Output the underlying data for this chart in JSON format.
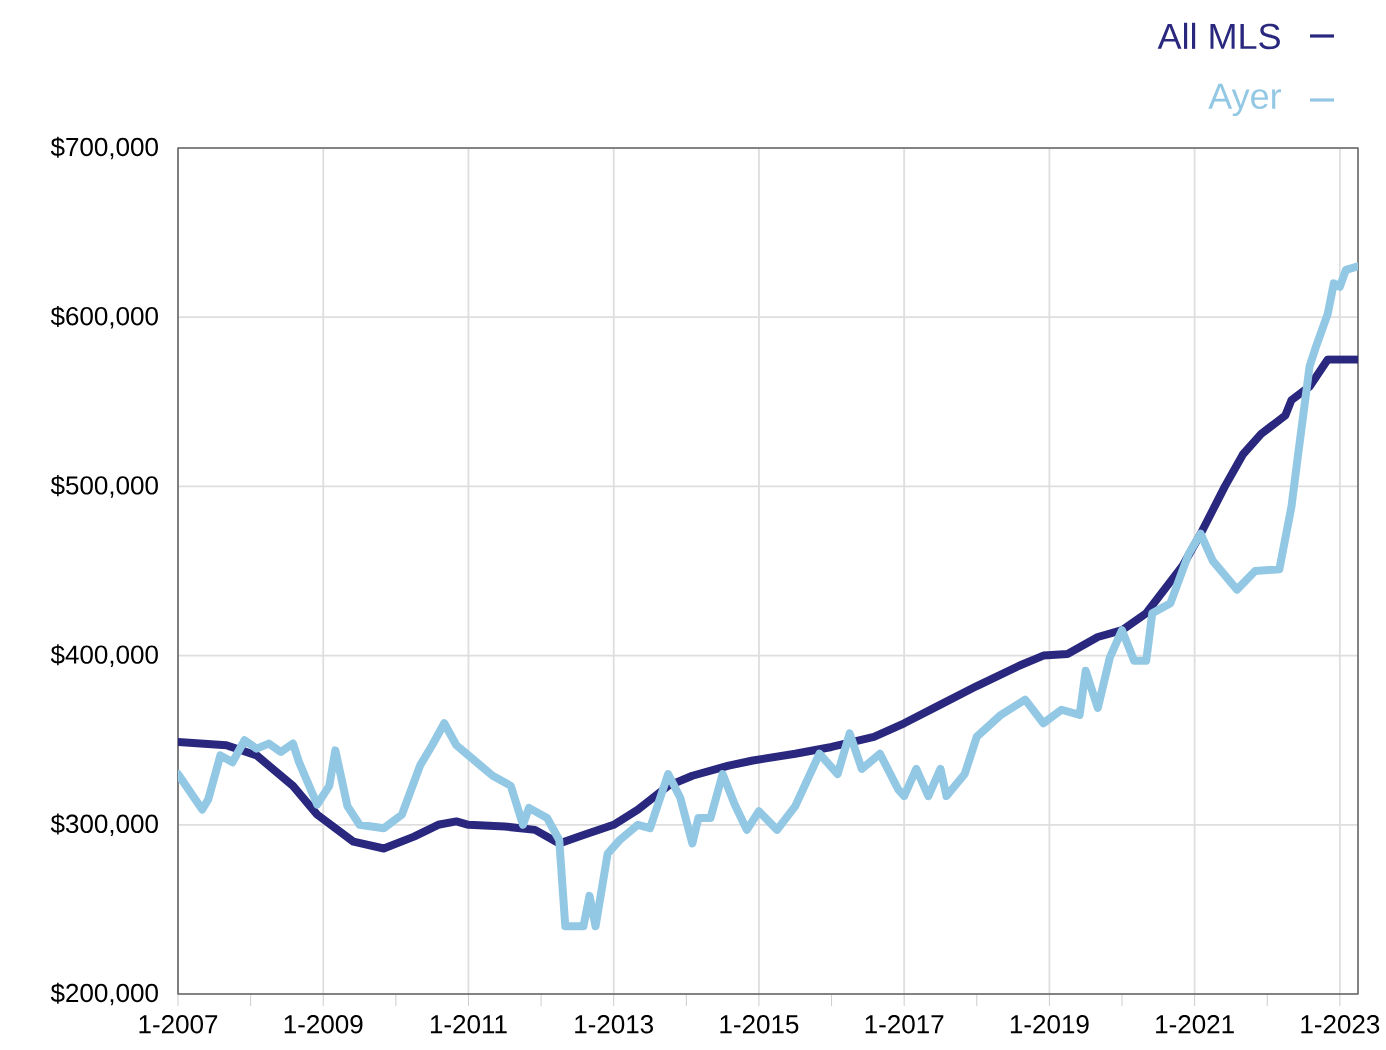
{
  "chart_data": {
    "type": "line",
    "xlim": [
      "2007-01",
      "2023-04"
    ],
    "xticks": [
      {
        "value": "2007-01",
        "label": "1-2007"
      },
      {
        "value": "2008-01",
        "label": null
      },
      {
        "value": "2009-01",
        "label": "1-2009"
      },
      {
        "value": "2010-01",
        "label": null
      },
      {
        "value": "2011-01",
        "label": "1-2011"
      },
      {
        "value": "2012-01",
        "label": null
      },
      {
        "value": "2013-01",
        "label": "1-2013"
      },
      {
        "value": "2014-01",
        "label": null
      },
      {
        "value": "2015-01",
        "label": "1-2015"
      },
      {
        "value": "2016-01",
        "label": null
      },
      {
        "value": "2017-01",
        "label": "1-2017"
      },
      {
        "value": "2018-01",
        "label": null
      },
      {
        "value": "2019-01",
        "label": "1-2019"
      },
      {
        "value": "2020-01",
        "label": null
      },
      {
        "value": "2021-01",
        "label": "1-2021"
      },
      {
        "value": "2022-01",
        "label": null
      },
      {
        "value": "2023-01",
        "label": "1-2023"
      }
    ],
    "ylim": [
      200000,
      700000
    ],
    "yticks": [
      {
        "value": 200000,
        "label": "$200,000"
      },
      {
        "value": 300000,
        "label": "$300,000"
      },
      {
        "value": 400000,
        "label": "$400,000"
      },
      {
        "value": 500000,
        "label": "$500,000"
      },
      {
        "value": 600000,
        "label": "$600,000"
      },
      {
        "value": 700000,
        "label": "$700,000"
      }
    ],
    "grid": true,
    "legend": "top right",
    "marker": "none",
    "line_style": "solid",
    "series": [
      {
        "name": "All MLS",
        "color": "#29287e",
        "x": [
          "2007-01",
          "2007-09",
          "2008-02",
          "2008-08",
          "2008-12",
          "2009-06",
          "2009-11",
          "2010-04",
          "2010-08",
          "2010-11",
          "2011-01",
          "2011-07",
          "2011-12",
          "2012-04",
          "2012-08",
          "2013-01",
          "2013-05",
          "2013-10",
          "2014-02",
          "2014-08",
          "2014-12",
          "2015-07",
          "2016-01",
          "2016-08",
          "2017-01",
          "2017-07",
          "2018-01",
          "2018-08",
          "2018-12",
          "2019-04",
          "2019-09",
          "2020-01",
          "2020-05",
          "2020-11",
          "2021-02",
          "2021-06",
          "2021-09",
          "2021-12",
          "2022-04",
          "2022-05",
          "2022-08",
          "2022-11",
          "2023-04"
        ],
        "values": [
          349000,
          347000,
          341000,
          323000,
          306000,
          290000,
          286000,
          293000,
          300000,
          302000,
          300000,
          299000,
          297000,
          289000,
          294000,
          300000,
          309000,
          323000,
          329000,
          335000,
          338000,
          342000,
          346000,
          352000,
          360000,
          371000,
          382000,
          394000,
          400000,
          401000,
          411000,
          415000,
          425000,
          453000,
          472000,
          500000,
          519000,
          531000,
          542000,
          551000,
          559000,
          575000,
          575000
        ]
      },
      {
        "name": "Ayer",
        "color": "#93c8e4",
        "x": [
          "2007-01",
          "2007-05",
          "2007-06",
          "2007-08",
          "2007-10",
          "2007-12",
          "2008-02",
          "2008-04",
          "2008-06",
          "2008-08",
          "2008-09",
          "2008-12",
          "2009-02",
          "2009-03",
          "2009-05",
          "2009-07",
          "2009-11",
          "2010-02",
          "2010-05",
          "2010-07",
          "2010-09",
          "2010-11",
          "2011-01",
          "2011-03",
          "2011-05",
          "2011-08",
          "2011-10",
          "2011-11",
          "2012-02",
          "2012-04",
          "2012-05",
          "2012-08",
          "2012-09",
          "2012-10",
          "2012-12",
          "2013-02",
          "2013-05",
          "2013-07",
          "2013-10",
          "2013-12",
          "2014-02",
          "2014-03",
          "2014-05",
          "2014-07",
          "2014-09",
          "2014-11",
          "2015-01",
          "2015-04",
          "2015-07",
          "2015-11",
          "2016-02",
          "2016-04",
          "2016-06",
          "2016-09",
          "2016-12",
          "2017-01",
          "2017-03",
          "2017-05",
          "2017-07",
          "2017-08",
          "2017-11",
          "2018-01",
          "2018-05",
          "2018-09",
          "2018-12",
          "2019-03",
          "2019-06",
          "2019-07",
          "2019-09",
          "2019-11",
          "2020-01",
          "2020-03",
          "2020-05",
          "2020-06",
          "2020-09",
          "2020-12",
          "2021-02",
          "2021-04",
          "2021-08",
          "2021-11",
          "2022-03",
          "2022-05",
          "2022-06",
          "2022-08",
          "2022-09",
          "2022-11",
          "2022-12",
          "2023-01",
          "2023-02",
          "2023-04"
        ],
        "values": [
          330000,
          309000,
          315000,
          341000,
          337000,
          350000,
          345000,
          348000,
          343000,
          348000,
          337000,
          312000,
          323000,
          344000,
          311000,
          300000,
          298000,
          306000,
          335000,
          347000,
          360000,
          347000,
          341000,
          335000,
          329000,
          323000,
          300000,
          310000,
          304000,
          291000,
          240000,
          240000,
          258000,
          240000,
          283000,
          291000,
          300000,
          298000,
          330000,
          316000,
          289000,
          304000,
          304000,
          330000,
          312000,
          297000,
          308000,
          297000,
          311000,
          342000,
          330000,
          354000,
          333000,
          342000,
          321000,
          317000,
          333000,
          317000,
          333000,
          317000,
          330000,
          352000,
          365000,
          374000,
          360000,
          368000,
          365000,
          391000,
          369000,
          399000,
          415000,
          397000,
          397000,
          425000,
          431000,
          460000,
          472000,
          456000,
          439000,
          450000,
          451000,
          488000,
          516000,
          571000,
          582000,
          602000,
          620000,
          618000,
          628000,
          630000
        ]
      }
    ]
  }
}
